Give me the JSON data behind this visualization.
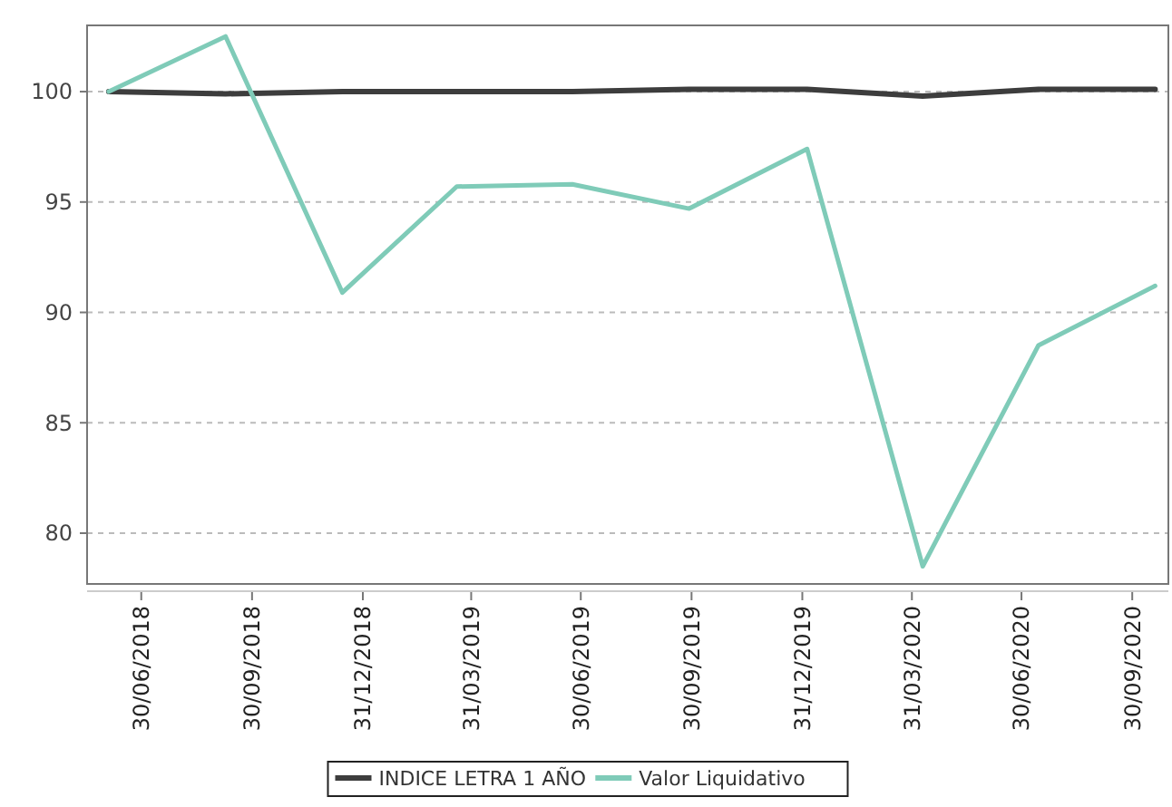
{
  "chart_data": {
    "type": "line",
    "x": [
      "2018-06-03",
      "2018-09-08",
      "2018-12-14",
      "2019-03-19",
      "2019-06-23",
      "2019-09-28",
      "2020-01-04",
      "2020-04-09",
      "2020-07-14",
      "2020-10-19"
    ],
    "series": [
      {
        "name": "INDICE LETRA 1 AÑO",
        "color": "#3d3d3d",
        "values": [
          100,
          99.9,
          100,
          100,
          100,
          100.1,
          100.1,
          99.8,
          100.1,
          100.1
        ]
      },
      {
        "name": "Valor Liquidativo",
        "color": "#7fcbb8",
        "values": [
          100,
          102.5,
          90.9,
          95.7,
          95.8,
          94.7,
          97.4,
          78.5,
          88.5,
          91.2
        ]
      }
    ],
    "xlim": [
      "2018-05-16",
      "2020-10-30"
    ],
    "xticks": [
      {
        "value": "2018-06-30",
        "label": "30/06/2018"
      },
      {
        "value": "2018-09-30",
        "label": "30/09/2018"
      },
      {
        "value": "2018-12-31",
        "label": "31/12/2018"
      },
      {
        "value": "2019-03-31",
        "label": "31/03/2019"
      },
      {
        "value": "2019-06-30",
        "label": "30/06/2019"
      },
      {
        "value": "2019-09-30",
        "label": "30/09/2019"
      },
      {
        "value": "2019-12-31",
        "label": "31/12/2019"
      },
      {
        "value": "2020-03-31",
        "label": "31/03/2020"
      },
      {
        "value": "2020-06-30",
        "label": "30/06/2020"
      },
      {
        "value": "2020-09-30",
        "label": "30/09/2020"
      }
    ],
    "ylim": [
      77.7,
      103
    ],
    "yticks": [
      80,
      85,
      90,
      95,
      100
    ],
    "grid": "y",
    "legend": "bottom",
    "marker": "none",
    "line_style": "solid"
  }
}
